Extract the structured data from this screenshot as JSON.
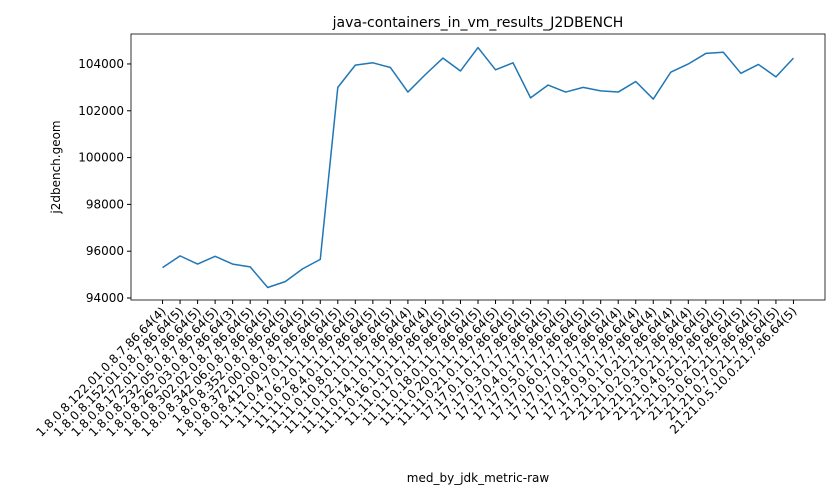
{
  "chart_data": {
    "type": "line",
    "title": "java-containers_in_vm_results_J2DBENCH",
    "x_label": "med_by_jdk_metric-raw",
    "y_label": "j2dbench.geom",
    "categories": [
      "1.8.0.8.122.01.0.8.7.86.64(4)",
      "1.8.0.8.152.01.0.8.7.86.64(5)",
      "1.8.0.8.172.01.0.8.7.86.64(5)",
      "1.8.0.8.232.05.0.8.7.86.64(5)",
      "1.8.0.8.262.03.0.8.7.86.64(3)",
      "1.8.0.8.302.02.0.8.7.86.64(5)",
      "1.8.0.8.342.06.0.8.7.86.64(5)",
      "1.8.0.8.352.0.8.7.86.64(5)",
      "1.8.0.8.372.00.0.8.7.86.64(5)",
      "1.8.0.8.412.00.0.8.7.86.64(5)",
      "11.11.0.4.7.0.11.7.86.64(5)",
      "11.11.0.6.2.0.11.7.86.64(5)",
      "11.11.0.8.4.0.11.7.86.64(5)",
      "11.11.0.10.8.0.11.7.86.64(5)",
      "11.11.0.12.1.0.11.7.86.64(4)",
      "11.11.0.14.1.0.11.7.86.64(4)",
      "11.11.0.16.1.0.11.7.86.64(5)",
      "11.11.0.17.0.11.7.86.64(5)",
      "11.11.0.18.0.11.7.86.64(5)",
      "11.11.0.20.0.11.7.86.64(5)",
      "11.11.0.21.0.11.7.86.64(5)",
      "17.17.0.1.0.17.7.86.64(5)",
      "17.17.0.3.0.17.7.86.64(5)",
      "17.17.0.4.0.17.7.86.64(5)",
      "17.17.0.5.0.17.7.86.64(5)",
      "17.17.0.6.0.17.7.86.64(5)",
      "17.17.0.7.0.17.7.86.64(4)",
      "17.17.0.8.0.17.7.86.64(4)",
      "17.17.0.9.0.17.7.86.64(4)",
      "21.21.0.1.0.21.7.86.64(4)",
      "21.21.0.2.0.21.7.86.64(4)",
      "21.21.0.3.0.21.7.86.64(5)",
      "21.21.0.4.0.21.7.86.64(5)",
      "21.21.0.5.0.21.7.86.64(5)",
      "21.21.0.6.0.21.7.86.64(5)",
      "21.21.0.7.0.21.7.86.64(5)",
      "21.21.0.5.10.0.21.7.86.64(5)"
    ],
    "values": [
      95300,
      95800,
      95450,
      95780,
      95450,
      95330,
      94450,
      94700,
      95250,
      95650,
      103000,
      103950,
      104050,
      103850,
      102800,
      103550,
      104250,
      103700,
      104700,
      103750,
      104050,
      102550,
      103100,
      102800,
      103000,
      102850,
      102800,
      103250,
      102500,
      103650,
      104000,
      104450,
      104500,
      103600,
      103980,
      103450,
      104250
    ],
    "color": "#1f77b4",
    "ylim": [
      93915,
      105280
    ],
    "yticks": [
      94000,
      96000,
      98000,
      100000,
      102000,
      104000
    ],
    "grid": false
  }
}
